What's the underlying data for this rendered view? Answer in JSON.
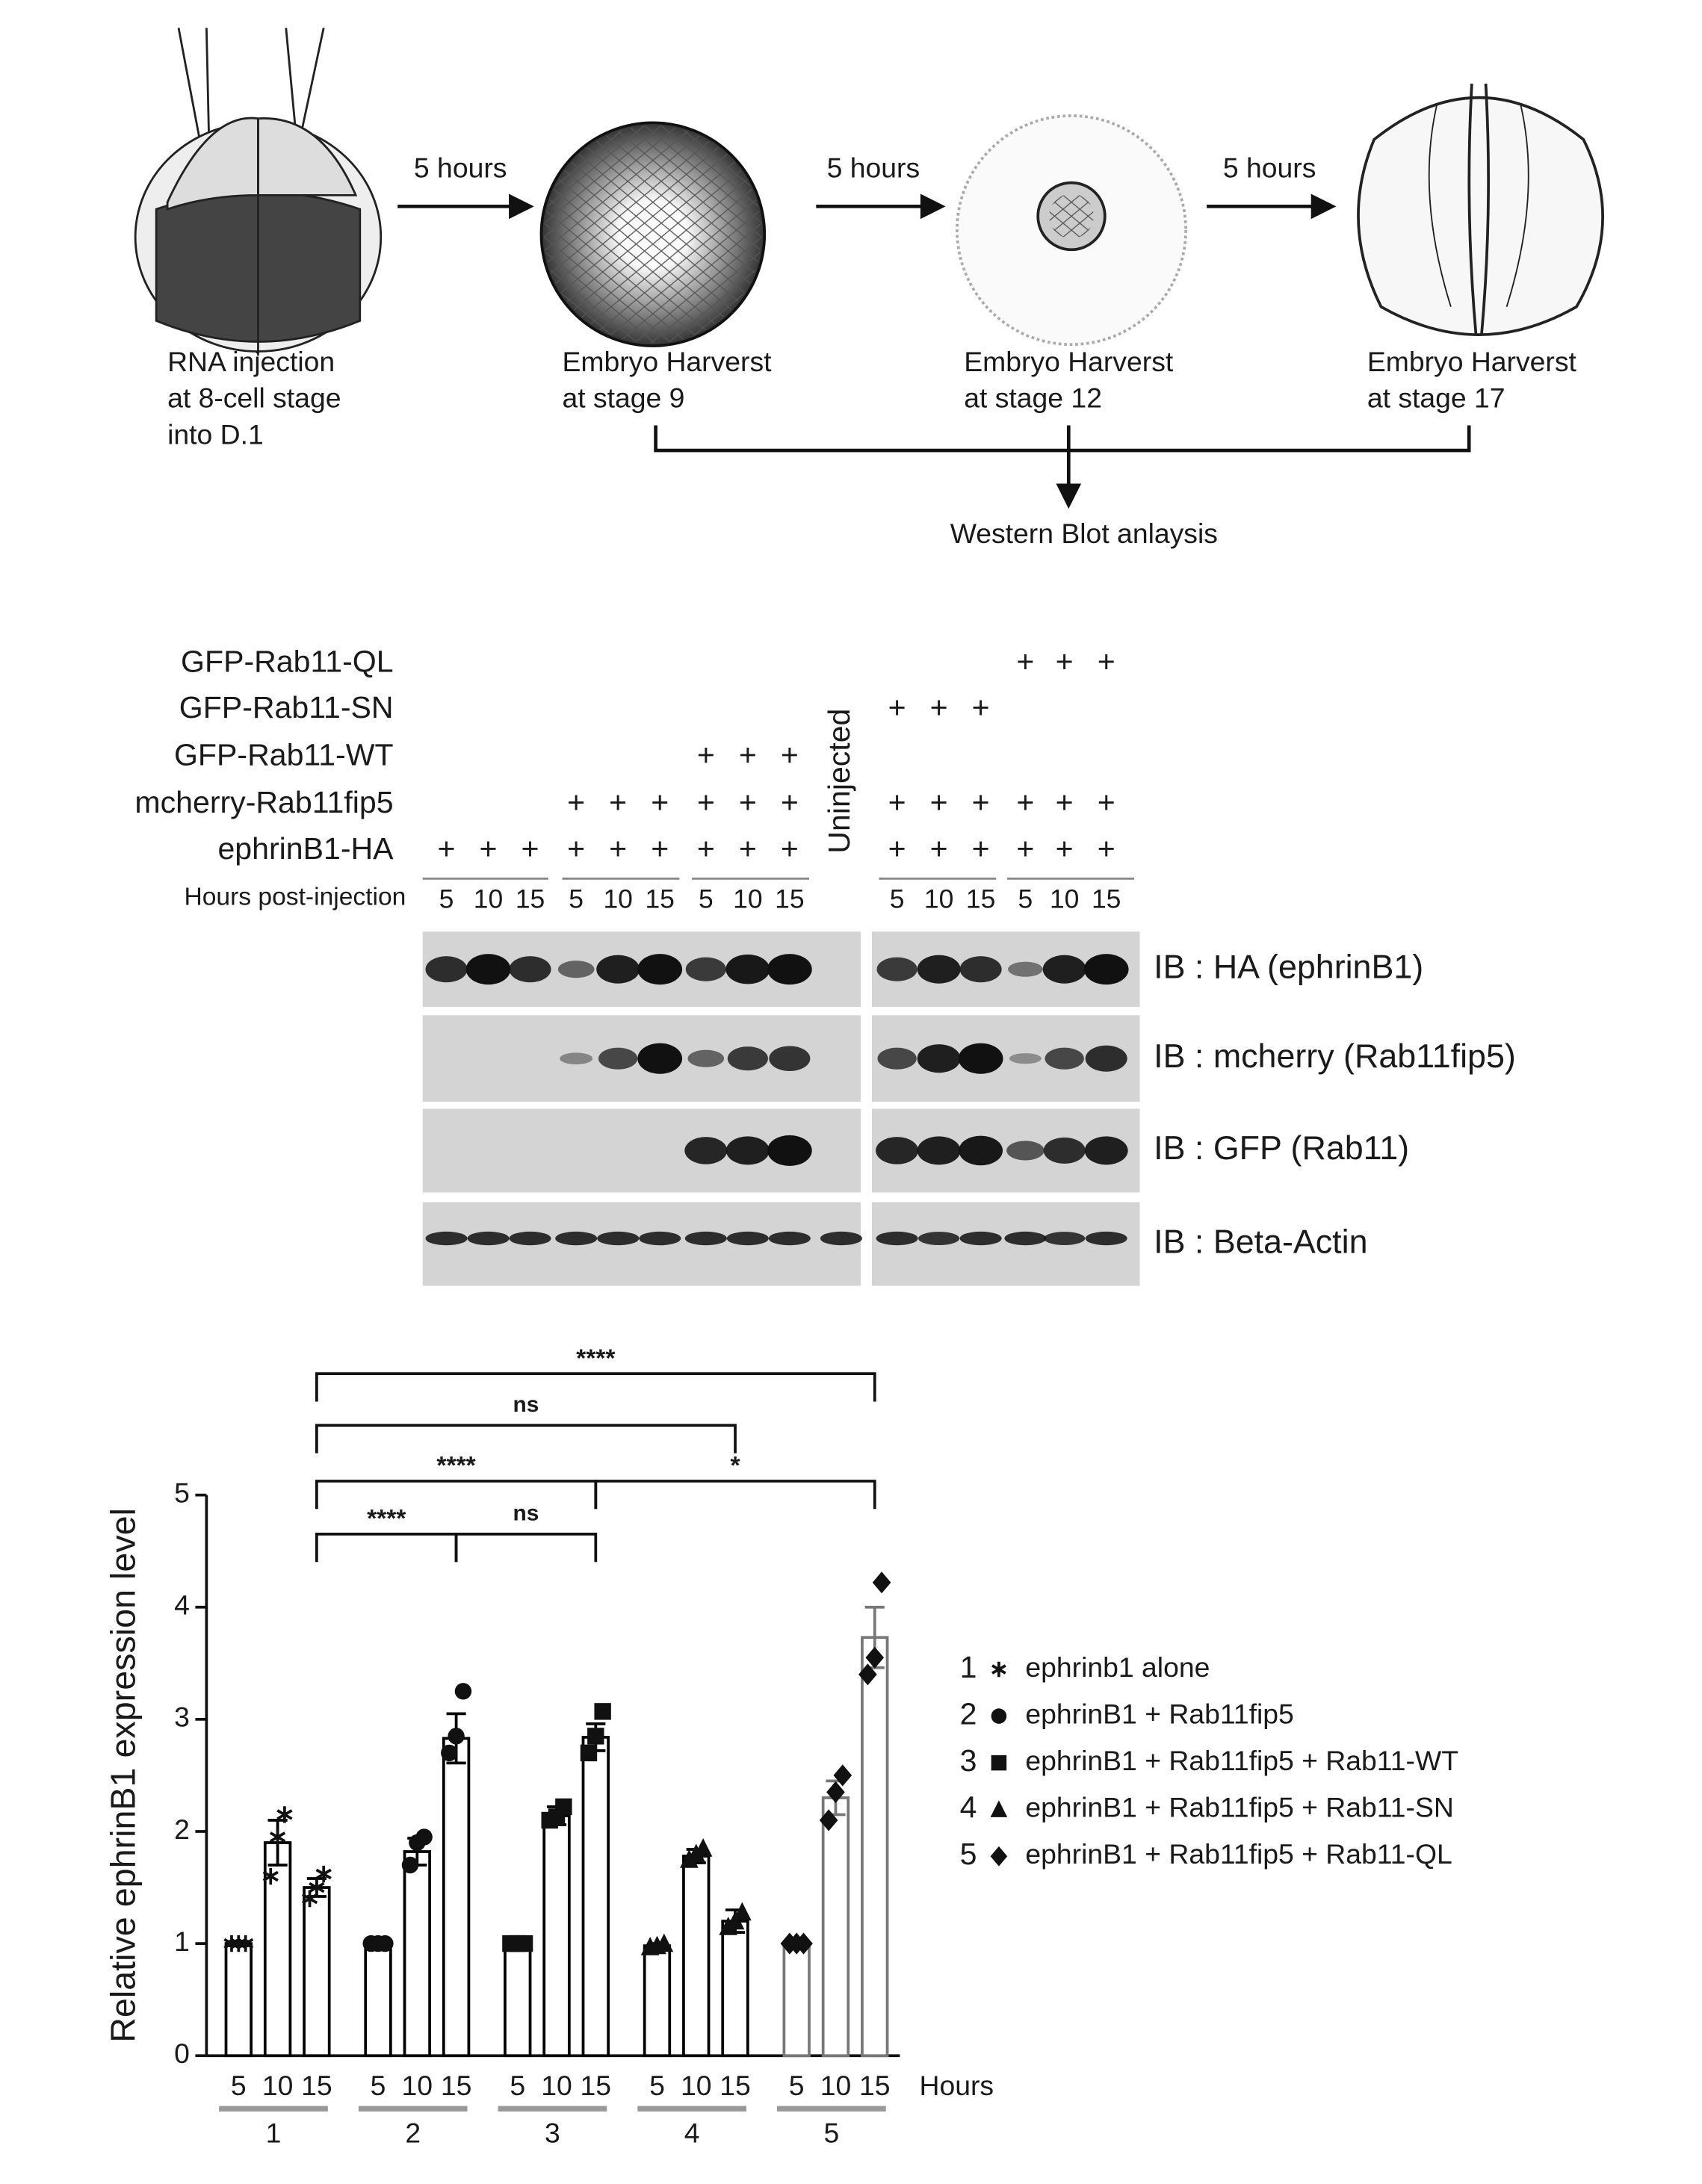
{
  "diagram": {
    "arrow_label": "5 hours",
    "steps": [
      {
        "caption": [
          "RNA injection",
          "at 8-cell stage",
          "into D.1"
        ]
      },
      {
        "caption": [
          "Embryo Harverst",
          "at stage 9"
        ]
      },
      {
        "caption": [
          "Embryo Harverst",
          "at stage 12"
        ]
      },
      {
        "caption": [
          "Embryo Harverst",
          "at stage 17"
        ]
      }
    ],
    "outcome": "Western Blot anlaysis"
  },
  "blot": {
    "rows": [
      {
        "label": "GFP-Rab11-QL",
        "cells": [
          null,
          null,
          null,
          null,
          null,
          null,
          null,
          null,
          null,
          null,
          null,
          null,
          null,
          "+",
          "+",
          "+"
        ]
      },
      {
        "label": "GFP-Rab11-SN",
        "cells": [
          null,
          null,
          null,
          null,
          null,
          null,
          null,
          null,
          null,
          null,
          "+",
          "+",
          "+",
          null,
          null,
          null
        ]
      },
      {
        "label": "GFP-Rab11-WT",
        "cells": [
          null,
          null,
          null,
          null,
          null,
          null,
          "+",
          "+",
          "+",
          null,
          null,
          null,
          null,
          null,
          null,
          null
        ]
      },
      {
        "label": "mcherry-Rab11fip5",
        "cells": [
          null,
          null,
          null,
          "+",
          "+",
          "+",
          "+",
          "+",
          "+",
          null,
          "+",
          "+",
          "+",
          "+",
          "+",
          "+"
        ]
      },
      {
        "label": "ephrinB1-HA",
        "cells": [
          "+",
          "+",
          "+",
          "+",
          "+",
          "+",
          "+",
          "+",
          "+",
          null,
          "+",
          "+",
          "+",
          "+",
          "+",
          "+"
        ]
      }
    ],
    "hours_label": "Hours post-injection",
    "hours": [
      "5",
      "10",
      "15",
      "5",
      "10",
      "15",
      "5",
      "10",
      "15",
      null,
      "5",
      "10",
      "15",
      "5",
      "10",
      "15"
    ],
    "uninjected": "Uninjected",
    "probes": [
      "IB : HA (ephrinB1)",
      "IB : mcherry (Rab11fip5)",
      "IB : GFP (Rab11)",
      "IB : Beta-Actin"
    ]
  },
  "chart_data": {
    "type": "bar",
    "y_label": "Relative ephrinB1 expression level",
    "x_label": "Hours",
    "categories": [
      "5",
      "10",
      "15"
    ],
    "ylim": [
      0,
      5
    ],
    "yticks": [
      0,
      1,
      2,
      3,
      4,
      5
    ],
    "series": [
      {
        "name": "1",
        "label": "ephrinb1 alone",
        "marker": "asterisk",
        "color": "#000000",
        "values": [
          1.0,
          1.9,
          1.5
        ],
        "errors": [
          0.02,
          0.2,
          0.08
        ],
        "points": [
          [
            1.0,
            1.0,
            1.0
          ],
          [
            1.6,
            1.95,
            2.15
          ],
          [
            1.4,
            1.5,
            1.62
          ]
        ]
      },
      {
        "name": "2",
        "label": "ephrinB1 + Rab11fip5",
        "marker": "circle",
        "color": "#000000",
        "values": [
          1.0,
          1.82,
          2.83
        ],
        "errors": [
          0.02,
          0.12,
          0.22
        ],
        "points": [
          [
            1.0,
            1.0,
            1.0
          ],
          [
            1.7,
            1.9,
            1.95
          ],
          [
            2.7,
            2.85,
            3.25
          ]
        ]
      },
      {
        "name": "3",
        "label": "ephrinB1 + Rab11fip5 + Rab11-WT",
        "marker": "square",
        "color": "#000000",
        "values": [
          1.0,
          2.14,
          2.84
        ],
        "errors": [
          0.02,
          0.08,
          0.12
        ],
        "points": [
          [
            1.0,
            1.0,
            1.0
          ],
          [
            2.1,
            2.13,
            2.22
          ],
          [
            2.7,
            2.85,
            3.07
          ]
        ]
      },
      {
        "name": "4",
        "label": "ephrinB1 + Rab11fip5 + Rab11-SN",
        "marker": "triangle",
        "color": "#000000",
        "values": [
          0.98,
          1.78,
          1.2
        ],
        "errors": [
          0.02,
          0.06,
          0.1
        ],
        "points": [
          [
            0.97,
            0.98,
            1.0
          ],
          [
            1.75,
            1.8,
            1.85
          ],
          [
            1.15,
            1.2,
            1.28
          ]
        ]
      },
      {
        "name": "5",
        "label": "ephrinB1 + Rab11fip5 + Rab11-QL",
        "marker": "diamond",
        "color": "#777777",
        "values": [
          1.0,
          2.3,
          3.73
        ],
        "errors": [
          0.02,
          0.15,
          0.27
        ],
        "points": [
          [
            1.0,
            1.0,
            1.0
          ],
          [
            2.1,
            2.35,
            2.5
          ],
          [
            3.4,
            3.55,
            4.22
          ]
        ]
      }
    ],
    "significance": [
      "****",
      "ns",
      "****",
      "*",
      "ns",
      "****"
    ]
  }
}
